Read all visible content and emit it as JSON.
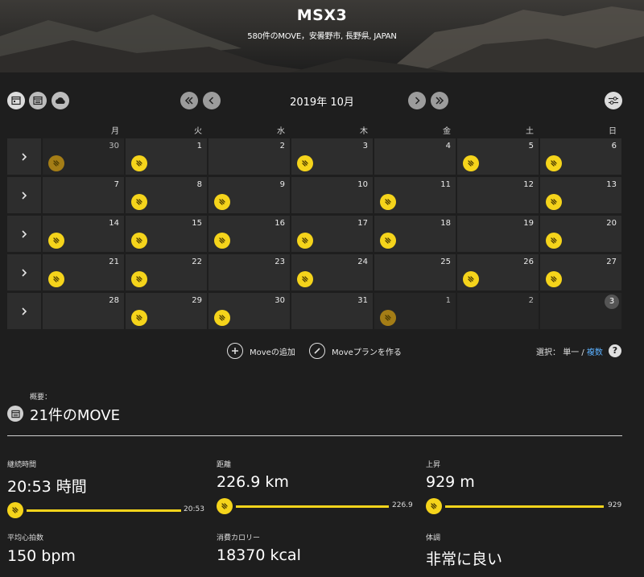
{
  "header": {
    "title": "MSX3",
    "subtitle": "580件のMOVE，安曇野市, 長野県, JAPAN"
  },
  "toolbar": {
    "month": "2019年 10月",
    "view_icons": [
      "calendar-month-icon",
      "calendar-list-icon",
      "cloud-icon"
    ],
    "nav_icons": [
      "double-chevron-left-icon",
      "chevron-left-icon",
      "chevron-right-icon",
      "double-chevron-right-icon"
    ]
  },
  "calendar": {
    "weekdays": [
      "月",
      "火",
      "水",
      "木",
      "金",
      "土",
      "日"
    ],
    "weeks": [
      [
        {
          "day": "30",
          "act": "dim",
          "other": true
        },
        {
          "day": "1",
          "act": "y"
        },
        {
          "day": "2",
          "act": ""
        },
        {
          "day": "3",
          "act": "y"
        },
        {
          "day": "4",
          "act": ""
        },
        {
          "day": "5",
          "act": "y"
        },
        {
          "day": "6",
          "act": "y"
        }
      ],
      [
        {
          "day": "7",
          "act": ""
        },
        {
          "day": "8",
          "act": "y"
        },
        {
          "day": "9",
          "act": "y"
        },
        {
          "day": "10",
          "act": ""
        },
        {
          "day": "11",
          "act": "y"
        },
        {
          "day": "12",
          "act": ""
        },
        {
          "day": "13",
          "act": "y"
        }
      ],
      [
        {
          "day": "14",
          "act": "y"
        },
        {
          "day": "15",
          "act": "y"
        },
        {
          "day": "16",
          "act": "y"
        },
        {
          "day": "17",
          "act": "y"
        },
        {
          "day": "18",
          "act": "y"
        },
        {
          "day": "19",
          "act": ""
        },
        {
          "day": "20",
          "act": "y"
        }
      ],
      [
        {
          "day": "21",
          "act": "y"
        },
        {
          "day": "22",
          "act": "y"
        },
        {
          "day": "23",
          "act": ""
        },
        {
          "day": "24",
          "act": "y"
        },
        {
          "day": "25",
          "act": ""
        },
        {
          "day": "26",
          "act": "y"
        },
        {
          "day": "27",
          "act": "y"
        }
      ],
      [
        {
          "day": "28",
          "act": ""
        },
        {
          "day": "29",
          "act": "y"
        },
        {
          "day": "30",
          "act": "y"
        },
        {
          "day": "31",
          "act": ""
        },
        {
          "day": "1",
          "act": "dim",
          "other": true
        },
        {
          "day": "2",
          "act": "",
          "other": true
        },
        {
          "day": "3",
          "act": "",
          "other": true,
          "today": true
        }
      ]
    ]
  },
  "actions": {
    "add_move": "Moveの追加",
    "plan_move": "Moveプランを作る",
    "select_prefix": "選択：",
    "select_single": "単一",
    "select_sep": " / ",
    "select_multi": "複数",
    "help": "?"
  },
  "summary": {
    "label": "概要：",
    "title": "21件のMOVE",
    "stats": [
      {
        "label": "継続時間",
        "value": "20:53 時間",
        "bar_label": "20:53",
        "bar_fill": 1.0
      },
      {
        "label": "距離",
        "value": "226.9 km",
        "bar_label": "226.9",
        "bar_fill": 1.0
      },
      {
        "label": "上昇",
        "value": "929 m",
        "bar_label": "929",
        "bar_fill": 1.0
      },
      {
        "label": "平均心拍数",
        "value": "150 bpm"
      },
      {
        "label": "消費カロリー",
        "value": "18370 kcal"
      },
      {
        "label": "体調",
        "value": "非常に良い"
      }
    ]
  },
  "colors": {
    "accent": "#f5d41b",
    "accent_dim": "#a47d16",
    "link": "#5ab0ff",
    "background": "#1e1e1e",
    "cell": "#2d2d2d"
  }
}
